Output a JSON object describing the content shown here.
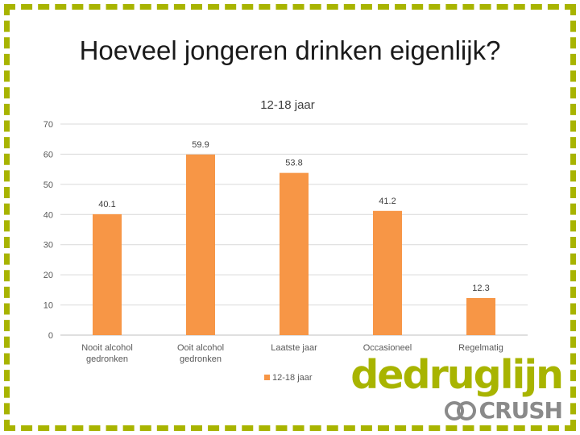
{
  "slide": {
    "title": "Hoeveel jongeren drinken eigenlijk?"
  },
  "colors": {
    "bar": "#f79646",
    "frame": "#a8b400",
    "logo_green": "#a8b400",
    "logo_gray": "#8a8a8a"
  },
  "chart_data": {
    "type": "bar",
    "title": "12-18 jaar",
    "categories": [
      "Nooit alcohol gedronken",
      "Ooit alcohol gedronken",
      "Laatste jaar",
      "Occasioneel",
      "Regelmatig"
    ],
    "series": [
      {
        "name": "12-18 jaar",
        "values": [
          40.1,
          59.9,
          53.8,
          41.2,
          12.3
        ]
      }
    ],
    "ylim": [
      0,
      70
    ],
    "yticks": [
      0,
      10,
      20,
      30,
      40,
      50,
      60,
      70
    ],
    "grid": true,
    "legend": "bottom"
  },
  "brand": {
    "name": "dedruglijn",
    "sub": "CRUSH"
  }
}
